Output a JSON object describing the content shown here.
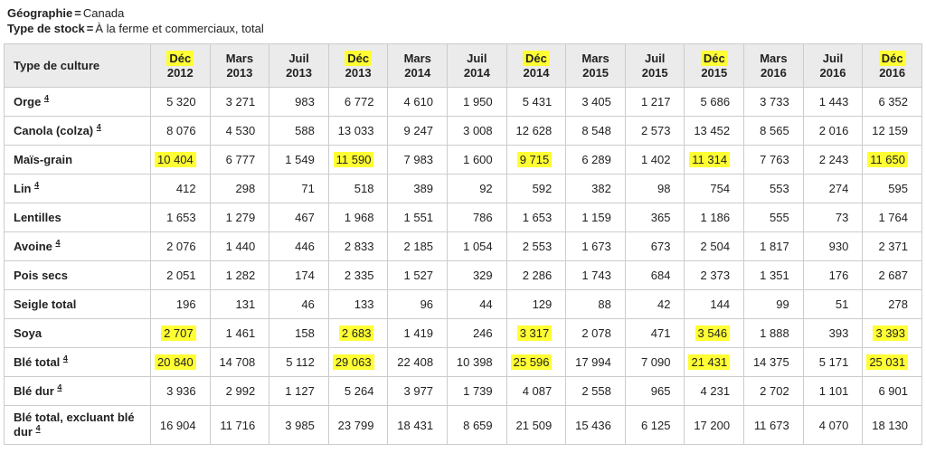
{
  "meta": {
    "geography_label": "Géographie",
    "equals": "=",
    "geography_value": "Canada",
    "stock_label": "Type de stock",
    "stock_value": "À la ferme et commerciaux, total"
  },
  "table": {
    "corner_header": "Type de culture",
    "columns": [
      {
        "month": "Déc",
        "year": "2012",
        "highlight": true
      },
      {
        "month": "Mars",
        "year": "2013",
        "highlight": false
      },
      {
        "month": "Juil",
        "year": "2013",
        "highlight": false
      },
      {
        "month": "Déc",
        "year": "2013",
        "highlight": true
      },
      {
        "month": "Mars",
        "year": "2014",
        "highlight": false
      },
      {
        "month": "Juil",
        "year": "2014",
        "highlight": false
      },
      {
        "month": "Déc",
        "year": "2014",
        "highlight": true
      },
      {
        "month": "Mars",
        "year": "2015",
        "highlight": false
      },
      {
        "month": "Juil",
        "year": "2015",
        "highlight": false
      },
      {
        "month": "Déc",
        "year": "2015",
        "highlight": true
      },
      {
        "month": "Mars",
        "year": "2016",
        "highlight": false
      },
      {
        "month": "Juil",
        "year": "2016",
        "highlight": false
      },
      {
        "month": "Déc",
        "year": "2016",
        "highlight": true
      }
    ],
    "rows": [
      {
        "label": "Orge",
        "footnote": "4",
        "highlight_dec": false,
        "values": [
          "5 320",
          "3 271",
          "983",
          "6 772",
          "4 610",
          "1 950",
          "5 431",
          "3 405",
          "1 217",
          "5 686",
          "3 733",
          "1 443",
          "6 352"
        ]
      },
      {
        "label": "Canola (colza)",
        "footnote": "4",
        "highlight_dec": false,
        "values": [
          "8 076",
          "4 530",
          "588",
          "13 033",
          "9 247",
          "3 008",
          "12 628",
          "8 548",
          "2 573",
          "13 452",
          "8 565",
          "2 016",
          "12 159"
        ]
      },
      {
        "label": "Maïs-grain",
        "footnote": "",
        "highlight_dec": true,
        "values": [
          "10 404",
          "6 777",
          "1 549",
          "11 590",
          "7 983",
          "1 600",
          "9 715",
          "6 289",
          "1 402",
          "11 314",
          "7 763",
          "2 243",
          "11 650"
        ]
      },
      {
        "label": "Lin",
        "footnote": "4",
        "highlight_dec": false,
        "values": [
          "412",
          "298",
          "71",
          "518",
          "389",
          "92",
          "592",
          "382",
          "98",
          "754",
          "553",
          "274",
          "595"
        ]
      },
      {
        "label": "Lentilles",
        "footnote": "",
        "highlight_dec": false,
        "values": [
          "1 653",
          "1 279",
          "467",
          "1 968",
          "1 551",
          "786",
          "1 653",
          "1 159",
          "365",
          "1 186",
          "555",
          "73",
          "1 764"
        ]
      },
      {
        "label": "Avoine",
        "footnote": "4",
        "highlight_dec": false,
        "values": [
          "2 076",
          "1 440",
          "446",
          "2 833",
          "2 185",
          "1 054",
          "2 553",
          "1 673",
          "673",
          "2 504",
          "1 817",
          "930",
          "2 371"
        ]
      },
      {
        "label": "Pois secs",
        "footnote": "",
        "highlight_dec": false,
        "values": [
          "2 051",
          "1 282",
          "174",
          "2 335",
          "1 527",
          "329",
          "2 286",
          "1 743",
          "684",
          "2 373",
          "1 351",
          "176",
          "2 687"
        ]
      },
      {
        "label": "Seigle total",
        "footnote": "",
        "highlight_dec": false,
        "values": [
          "196",
          "131",
          "46",
          "133",
          "96",
          "44",
          "129",
          "88",
          "42",
          "144",
          "99",
          "51",
          "278"
        ]
      },
      {
        "label": "Soya",
        "footnote": "",
        "highlight_dec": true,
        "values": [
          "2 707",
          "1 461",
          "158",
          "2 683",
          "1 419",
          "246",
          "3 317",
          "2 078",
          "471",
          "3 546",
          "1 888",
          "393",
          "3 393"
        ]
      },
      {
        "label": "Blé total",
        "footnote": "4",
        "highlight_dec": true,
        "values": [
          "20 840",
          "14 708",
          "5 112",
          "29 063",
          "22 408",
          "10 398",
          "25 596",
          "17 994",
          "7 090",
          "21 431",
          "14 375",
          "5 171",
          "25 031"
        ]
      },
      {
        "label": "Blé dur",
        "footnote": "4",
        "highlight_dec": false,
        "values": [
          "3 936",
          "2 992",
          "1 127",
          "5 264",
          "3 977",
          "1 739",
          "4 087",
          "2 558",
          "965",
          "4 231",
          "2 702",
          "1 101",
          "6 901"
        ]
      },
      {
        "label": "Blé total, excluant blé dur",
        "footnote": "4",
        "highlight_dec": false,
        "values": [
          "16 904",
          "11 716",
          "3 985",
          "23 799",
          "18 431",
          "8 659",
          "21 509",
          "15 436",
          "6 125",
          "17 200",
          "11 673",
          "4 070",
          "18 130"
        ]
      }
    ]
  },
  "colors": {
    "highlight": "#ffff33",
    "header_bg": "#ebebeb",
    "border": "#cccccc"
  }
}
